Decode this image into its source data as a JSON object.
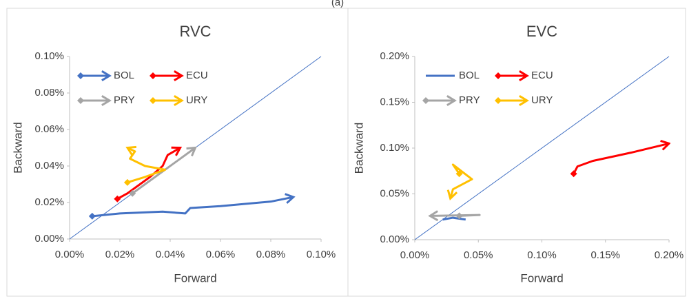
{
  "caption": "(a)",
  "chart_data": [
    {
      "type": "line",
      "title": "RVC",
      "x_label": "Forward",
      "y_label": "Backward",
      "xlim": [
        0,
        0.1
      ],
      "ylim": [
        0,
        0.1
      ],
      "xticks": [
        {
          "value": 0,
          "label": "0.00%"
        },
        {
          "value": 0.02,
          "label": "0.02%"
        },
        {
          "value": 0.04,
          "label": "0.04%"
        },
        {
          "value": 0.06,
          "label": "0.06%"
        },
        {
          "value": 0.08,
          "label": "0.08%"
        },
        {
          "value": 0.1,
          "label": "0.10%"
        }
      ],
      "yticks": [
        {
          "value": 0,
          "label": "0.00%"
        },
        {
          "value": 0.02,
          "label": "0.02%"
        },
        {
          "value": 0.04,
          "label": "0.04%"
        },
        {
          "value": 0.06,
          "label": "0.06%"
        },
        {
          "value": 0.08,
          "label": "0.08%"
        },
        {
          "value": 0.1,
          "label": "0.10%"
        }
      ],
      "diagonal": true,
      "series": [
        {
          "name": "BOL",
          "color": "#4472c4",
          "markers": true,
          "x": [
            0.009,
            0.02,
            0.037,
            0.046,
            0.048,
            0.06,
            0.08,
            0.089
          ],
          "values": [
            0.0125,
            0.014,
            0.015,
            0.014,
            0.017,
            0.018,
            0.0205,
            0.023
          ]
        },
        {
          "name": "ECU",
          "color": "#ff0000",
          "markers": true,
          "x": [
            0.019,
            0.023,
            0.032,
            0.037,
            0.039,
            0.044
          ],
          "values": [
            0.022,
            0.025,
            0.034,
            0.04,
            0.046,
            0.05
          ]
        },
        {
          "name": "PRY",
          "color": "#a5a5a5",
          "markers": true,
          "x": [
            0.025,
            0.035,
            0.05
          ],
          "values": [
            0.025,
            0.035,
            0.05
          ]
        },
        {
          "name": "URY",
          "color": "#ffc000",
          "markers": true,
          "x": [
            0.023,
            0.03,
            0.038,
            0.03,
            0.024,
            0.026,
            0.023
          ],
          "values": [
            0.031,
            0.034,
            0.038,
            0.04,
            0.044,
            0.048,
            0.05
          ]
        }
      ]
    },
    {
      "type": "line",
      "title": "EVC",
      "x_label": "Forward",
      "y_label": "Backward",
      "xlim": [
        0,
        0.2
      ],
      "ylim": [
        0,
        0.2
      ],
      "xticks": [
        {
          "value": 0,
          "label": "0.00%"
        },
        {
          "value": 0.05,
          "label": "0.05%"
        },
        {
          "value": 0.1,
          "label": "0.10%"
        },
        {
          "value": 0.15,
          "label": "0.15%"
        },
        {
          "value": 0.2,
          "label": "0.20%"
        }
      ],
      "yticks": [
        {
          "value": 0,
          "label": "0.00%"
        },
        {
          "value": 0.05,
          "label": "0.05%"
        },
        {
          "value": 0.1,
          "label": "0.10%"
        },
        {
          "value": 0.15,
          "label": "0.15%"
        },
        {
          "value": 0.2,
          "label": "0.20%"
        }
      ],
      "diagonal": true,
      "series": [
        {
          "name": "BOL",
          "color": "#4472c4",
          "markers": false,
          "x": [
            0.022,
            0.03,
            0.04
          ],
          "values": [
            0.022,
            0.024,
            0.022
          ]
        },
        {
          "name": "ECU",
          "color": "#ff0000",
          "markers": true,
          "x": [
            0.125,
            0.128,
            0.14,
            0.17,
            0.2
          ],
          "values": [
            0.072,
            0.08,
            0.086,
            0.095,
            0.105
          ]
        },
        {
          "name": "PRY",
          "color": "#a5a5a5",
          "markers": true,
          "x": [
            0.035,
            0.051,
            0.012
          ],
          "values": [
            0.026,
            0.027,
            0.026
          ]
        },
        {
          "name": "URY",
          "color": "#ffc000",
          "markers": true,
          "x": [
            0.035,
            0.03,
            0.045,
            0.03,
            0.028
          ],
          "values": [
            0.072,
            0.082,
            0.066,
            0.055,
            0.045
          ]
        }
      ]
    }
  ]
}
